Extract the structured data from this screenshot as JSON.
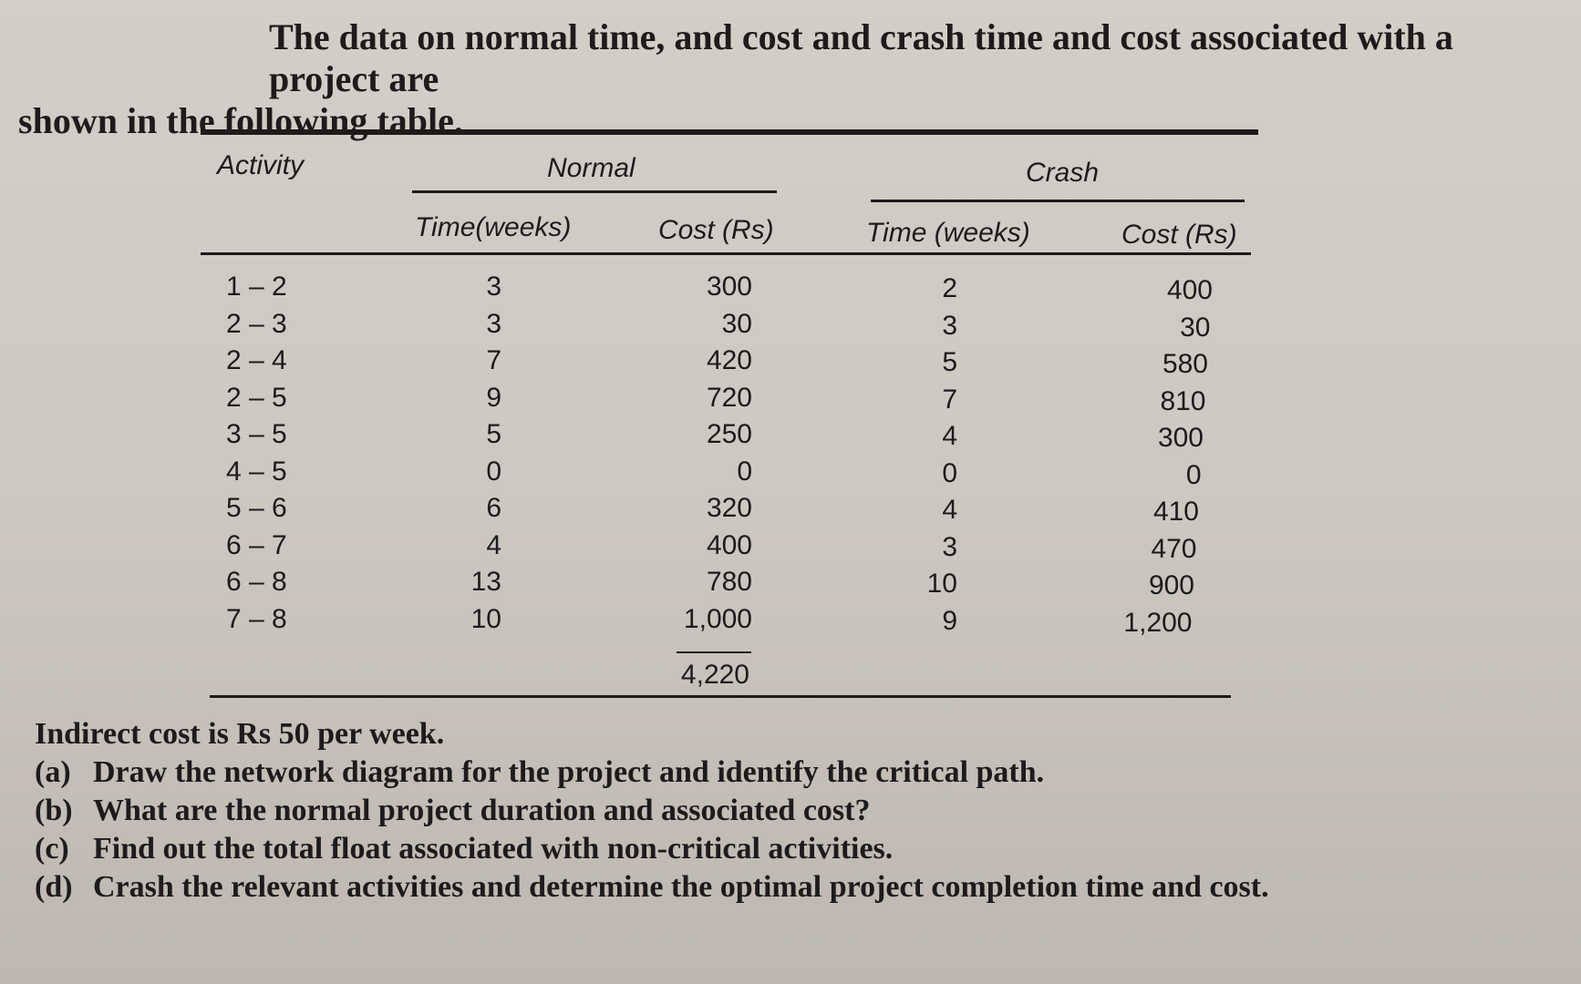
{
  "intro": {
    "line1": "The data on normal time, and cost and crash time and cost associated with a project are",
    "line2": "shown in the following table."
  },
  "table": {
    "headers": {
      "activity": "Activity",
      "normal": "Normal",
      "crash": "Crash",
      "normal_time": "Time(weeks)",
      "normal_cost": "Cost (Rs)",
      "crash_time": "Time (weeks)",
      "crash_cost": "Cost (Rs)"
    },
    "rows": [
      {
        "activity": "1 – 2",
        "normal_time": "3",
        "normal_cost": "300",
        "crash_time": "2",
        "crash_cost": "400"
      },
      {
        "activity": "2 – 3",
        "normal_time": "3",
        "normal_cost": "30",
        "crash_time": "3",
        "crash_cost": "30"
      },
      {
        "activity": "2 – 4",
        "normal_time": "7",
        "normal_cost": "420",
        "crash_time": "5",
        "crash_cost": "580"
      },
      {
        "activity": "2 – 5",
        "normal_time": "9",
        "normal_cost": "720",
        "crash_time": "7",
        "crash_cost": "810"
      },
      {
        "activity": "3 – 5",
        "normal_time": "5",
        "normal_cost": "250",
        "crash_time": "4",
        "crash_cost": "300"
      },
      {
        "activity": "4 – 5",
        "normal_time": "0",
        "normal_cost": "0",
        "crash_time": "0",
        "crash_cost": "0"
      },
      {
        "activity": "5 – 6",
        "normal_time": "6",
        "normal_cost": "320",
        "crash_time": "4",
        "crash_cost": "410"
      },
      {
        "activity": "6 – 7",
        "normal_time": "4",
        "normal_cost": "400",
        "crash_time": "3",
        "crash_cost": "470"
      },
      {
        "activity": "6 – 8",
        "normal_time": "13",
        "normal_cost": "780",
        "crash_time": "10",
        "crash_cost": "900"
      },
      {
        "activity": "7 – 8",
        "normal_time": "10",
        "normal_cost": "1,000",
        "crash_time": "9",
        "crash_cost": "1,200"
      }
    ],
    "normal_cost_total": "4,220"
  },
  "indirect": "Indirect cost is Rs 50 per week.",
  "questions": [
    {
      "label": "(a)",
      "text": "Draw the network diagram for the project and identify the critical path."
    },
    {
      "label": "(b)",
      "text": "What are the normal project duration and associated cost?"
    },
    {
      "label": "(c)",
      "text": "Find out the total float associated with non-critical activities."
    },
    {
      "label": "(d)",
      "text": "Crash the relevant activities and determine the optimal project completion time and cost."
    }
  ]
}
